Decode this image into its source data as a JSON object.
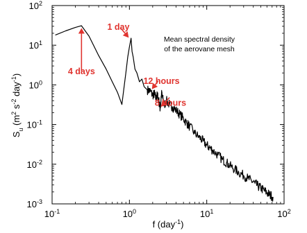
{
  "chart_data": {
    "type": "line",
    "title": "",
    "inset_text": [
      "Mean spectral density",
      "of the aerovane mesh"
    ],
    "xlabel": {
      "base": "f (day",
      "sup": "-1",
      "close": ")"
    },
    "ylabel": {
      "base": "S",
      "sub": "u",
      "open": " (m",
      "sup1": "2",
      "mid": " s",
      "sup2": "-2",
      "mid2": " day",
      "sup3": "-1",
      "close": ")"
    },
    "x_scale": "log",
    "y_scale": "log",
    "xlim": [
      0.1,
      100
    ],
    "ylim": [
      0.001,
      100
    ],
    "x_ticks": [
      {
        "base": "10",
        "exp": "-1",
        "value": 0.1
      },
      {
        "base": "10",
        "exp": "0",
        "value": 1
      },
      {
        "base": "10",
        "exp": "1",
        "value": 10
      },
      {
        "base": "10",
        "exp": "2",
        "value": 100
      }
    ],
    "y_ticks": [
      {
        "base": "10",
        "exp": "-3",
        "value": 0.001
      },
      {
        "base": "10",
        "exp": "-2",
        "value": 0.01
      },
      {
        "base": "10",
        "exp": "-1",
        "value": 0.1
      },
      {
        "base": "10",
        "exp": "0",
        "value": 1
      },
      {
        "base": "10",
        "exp": "1",
        "value": 10
      },
      {
        "base": "10",
        "exp": "2",
        "value": 100
      }
    ],
    "grid": false,
    "legend": "none",
    "series_color": "#000000",
    "annotation_color": "#e0342f",
    "series": [
      {
        "x": [
          0.11,
          0.15,
          0.2,
          0.24,
          0.3,
          0.4,
          0.5,
          0.6,
          0.7,
          0.8,
          0.84,
          0.9,
          0.95,
          1.0,
          1.05,
          1.08,
          1.12,
          1.18,
          1.25,
          1.35,
          1.45,
          1.55,
          1.7,
          1.85,
          2.0,
          2.1,
          2.2,
          2.3,
          2.4,
          2.5,
          2.6,
          2.7,
          2.8,
          3.0,
          3.3,
          3.6,
          4.0,
          4.5,
          5.0,
          5.5,
          6.0,
          7.0,
          8.0,
          9.0,
          10.0,
          11.0,
          12.0,
          14.0,
          16.0,
          18.0,
          20.0,
          23.0,
          26.0,
          30.0,
          34.0,
          38.0,
          42.0,
          46.0,
          50.0,
          55.0,
          60.0,
          65.0,
          72.0
        ],
        "y": [
          18,
          23,
          28,
          31,
          17,
          5.5,
          2.5,
          1.2,
          0.65,
          0.32,
          0.7,
          2.0,
          5.0,
          9.0,
          15.0,
          7.0,
          5.0,
          2.5,
          2.0,
          1.2,
          1.4,
          0.9,
          0.75,
          0.7,
          0.55,
          0.6,
          0.45,
          0.55,
          0.4,
          0.25,
          0.6,
          0.45,
          0.3,
          0.4,
          0.32,
          0.28,
          0.23,
          0.18,
          0.14,
          0.11,
          0.09,
          0.06,
          0.048,
          0.038,
          0.03,
          0.026,
          0.022,
          0.017,
          0.013,
          0.011,
          0.009,
          0.0075,
          0.0062,
          0.0052,
          0.0044,
          0.0038,
          0.0033,
          0.0028,
          0.0025,
          0.0022,
          0.0019,
          0.0017,
          0.0015
        ]
      }
    ],
    "annotations": [
      {
        "text": "4 days",
        "label_xy": [
          0.24,
          3.0
        ],
        "arrow_from": [
          0.24,
          2.2
        ],
        "arrow_to": [
          0.24,
          27
        ]
      },
      {
        "text": "1 day",
        "label_xy": [
          0.72,
          40
        ],
        "arrow_from": [
          0.76,
          28
        ],
        "arrow_to": [
          0.98,
          15.5
        ]
      },
      {
        "text": "12 hours",
        "label_xy": [
          2.6,
          1.7
        ],
        "arrow_from": [
          2.35,
          1.25
        ],
        "arrow_to": [
          1.95,
          0.78
        ]
      },
      {
        "text": "8 hours",
        "label_xy": [
          3.4,
          0.48
        ],
        "arrow_from": [
          3.3,
          0.48
        ],
        "arrow_to": [
          2.55,
          0.28
        ]
      }
    ]
  }
}
